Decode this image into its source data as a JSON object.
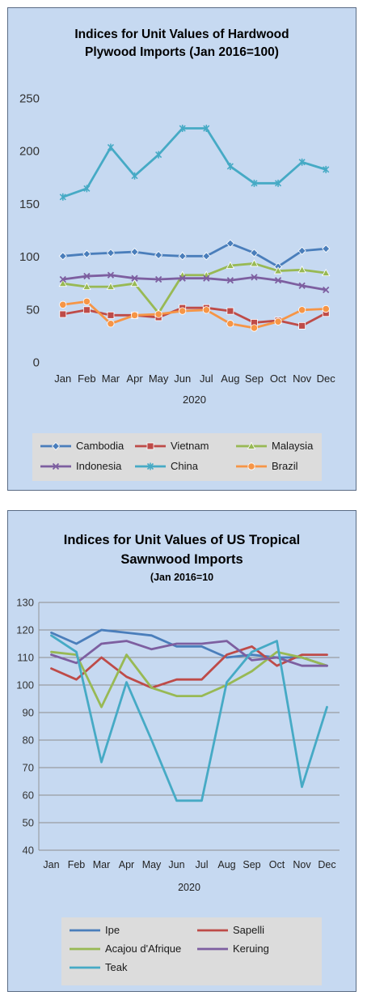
{
  "chart_data": [
    {
      "type": "line",
      "title": "Indices for Unit Values of Hardwood Plywood Imports (Jan 2016=100)",
      "title_lines": [
        "Indices for Unit Values of Hardwood",
        "Plywood Imports (Jan 2016=100)"
      ],
      "subtitle": "",
      "xlabel": "2020",
      "ylabel": "",
      "categories": [
        "Jan",
        "Feb",
        "Mar",
        "Apr",
        "May",
        "Jun",
        "Jul",
        "Aug",
        "Sep",
        "Oct",
        "Nov",
        "Dec"
      ],
      "ylim": [
        0,
        250
      ],
      "yticks": [
        "0",
        "50",
        "100",
        "150",
        "200",
        "250"
      ],
      "grid": false,
      "legend": "bottom",
      "series": [
        {
          "name": "Cambodia",
          "color": "#4a7ebb",
          "marker": "diamond",
          "values": [
            101,
            103,
            104,
            105,
            102,
            101,
            101,
            113,
            104,
            91,
            106,
            108
          ]
        },
        {
          "name": "Vietnam",
          "color": "#be4b48",
          "marker": "square",
          "values": [
            46,
            50,
            45,
            45,
            43,
            52,
            52,
            49,
            38,
            40,
            35,
            47
          ]
        },
        {
          "name": "Malaysia",
          "color": "#98b954",
          "marker": "triangle",
          "values": [
            75,
            72,
            72,
            75,
            47,
            83,
            83,
            92,
            94,
            87,
            88,
            85
          ]
        },
        {
          "name": "Indonesia",
          "color": "#7d5fa0",
          "marker": "x",
          "values": [
            79,
            82,
            83,
            80,
            79,
            80,
            80,
            78,
            81,
            78,
            73,
            69
          ]
        },
        {
          "name": "China",
          "color": "#46aac5",
          "marker": "star",
          "values": [
            157,
            165,
            204,
            177,
            197,
            222,
            222,
            186,
            170,
            170,
            190,
            183
          ]
        },
        {
          "name": "Brazil",
          "color": "#f69546",
          "marker": "circle",
          "values": [
            55,
            58,
            37,
            45,
            46,
            49,
            50,
            37,
            33,
            39,
            50,
            51
          ]
        }
      ]
    },
    {
      "type": "line",
      "title": "Indices for Unit Values of US Tropical Sawnwood Imports",
      "title_lines": [
        "Indices for Unit Values of US Tropical",
        "Sawnwood Imports"
      ],
      "subtitle": "(Jan 2016=10",
      "xlabel": "2020",
      "ylabel": "",
      "categories": [
        "Jan",
        "Feb",
        "Mar",
        "Apr",
        "May",
        "Jun",
        "Jul",
        "Aug",
        "Sep",
        "Oct",
        "Nov",
        "Dec"
      ],
      "ylim": [
        40,
        130
      ],
      "yticks": [
        "40",
        "50",
        "60",
        "70",
        "80",
        "90",
        "100",
        "110",
        "120",
        "130"
      ],
      "grid": true,
      "legend": "bottom",
      "series": [
        {
          "name": "Ipe",
          "color": "#4a7ebb",
          "values": [
            119,
            115,
            120,
            119,
            118,
            114,
            114,
            110,
            111,
            110,
            110,
            107
          ]
        },
        {
          "name": "Sapelli",
          "color": "#be4b48",
          "values": [
            106,
            102,
            110,
            103,
            99,
            102,
            102,
            111,
            114,
            107,
            111,
            111
          ]
        },
        {
          "name": "Acajou d'Afrique",
          "color": "#98b954",
          "values": [
            112,
            111,
            92,
            111,
            99,
            96,
            96,
            100,
            105,
            112,
            110,
            107
          ]
        },
        {
          "name": "Keruing",
          "color": "#7d5fa0",
          "values": [
            111,
            108,
            115,
            116,
            113,
            115,
            115,
            116,
            109,
            110,
            107,
            107
          ]
        },
        {
          "name": "Teak",
          "color": "#46aac5",
          "values": [
            118,
            112,
            72,
            101,
            80,
            58,
            58,
            101,
            112,
            116,
            63,
            92
          ]
        }
      ]
    }
  ]
}
